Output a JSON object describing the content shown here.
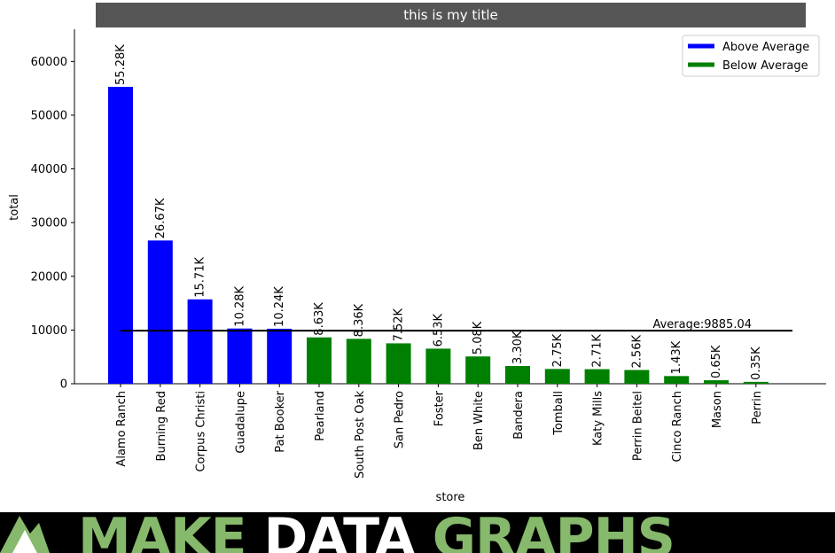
{
  "chart_data": {
    "type": "bar",
    "title": "this is my title",
    "xlabel": "store",
    "ylabel": "total",
    "ylim": [
      0,
      66000
    ],
    "yticks": [
      0,
      10000,
      20000,
      30000,
      40000,
      50000,
      60000
    ],
    "categories": [
      "Alamo Ranch",
      "Burning Red",
      "Corpus Christi",
      "Guadalupe",
      "Pat Booker",
      "Pearland",
      "South Post Oak",
      "San Pedro",
      "Foster",
      "Ben White",
      "Bandera",
      "Tomball",
      "Katy Mills",
      "Perrin Beitel",
      "Cinco Ranch",
      "Mason",
      "Perrin"
    ],
    "values": [
      55280,
      26670,
      15710,
      10280,
      10240,
      8630,
      8360,
      7520,
      6530,
      5080,
      3300,
      2750,
      2710,
      2560,
      1430,
      650,
      350
    ],
    "value_labels": [
      "55.28K",
      "26.67K",
      "15.71K",
      "10.28K",
      "10.24K",
      "8.63K",
      "8.36K",
      "7.52K",
      "6.53K",
      "5.08K",
      "3.30K",
      "2.75K",
      "2.71K",
      "2.56K",
      "1.43K",
      "0.65K",
      "0.35K"
    ],
    "groups": [
      "above",
      "above",
      "above",
      "above",
      "above",
      "below",
      "below",
      "below",
      "below",
      "below",
      "below",
      "below",
      "below",
      "below",
      "below",
      "below",
      "below"
    ],
    "average": 9885.04,
    "average_label": "Average:9885.04",
    "legend": {
      "placement": "top-right",
      "items": [
        {
          "key": "above",
          "label": "Above Average",
          "color": "#0000ff"
        },
        {
          "key": "below",
          "label": "Below Average",
          "color": "#008000"
        }
      ]
    },
    "grid": false
  },
  "banner": {
    "word1": "MAKE",
    "word2": "DATA",
    "word3": "GRAPHS",
    "logo_icon": "mountain-logo-icon"
  }
}
